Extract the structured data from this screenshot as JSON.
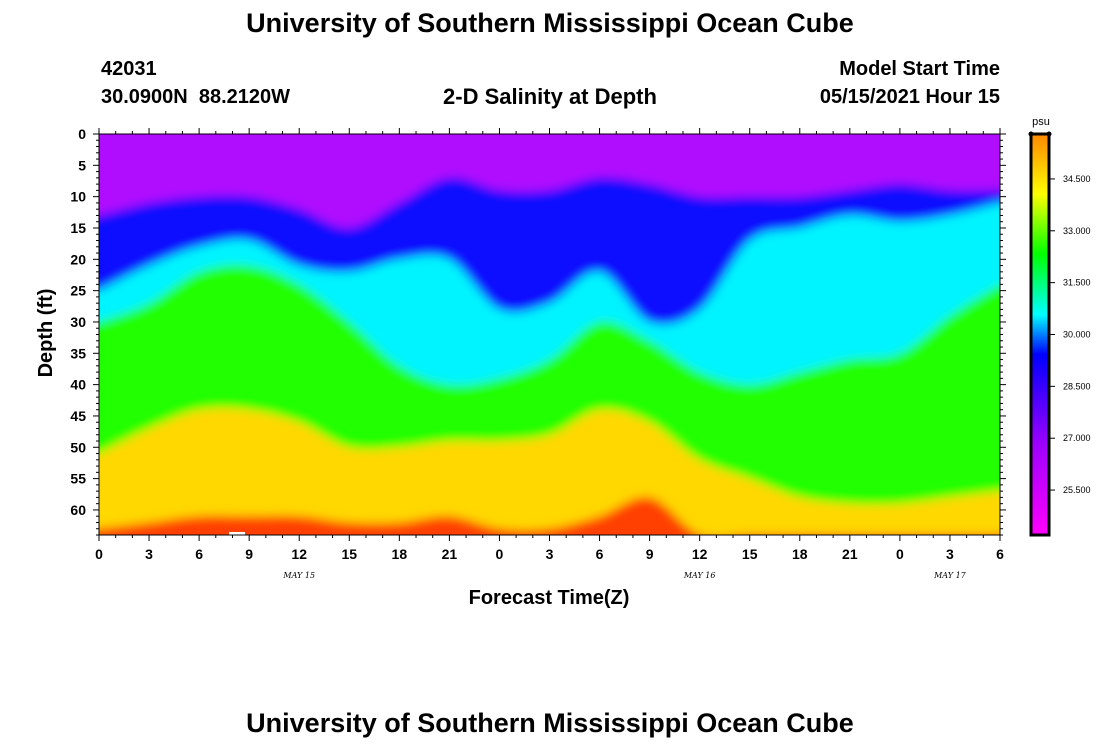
{
  "header": {
    "title": "University of Southern Mississippi Ocean Cube",
    "station_id": "42031",
    "coordinates": "30.0900N  88.2120W",
    "subtitle": "2-D Salinity at Depth",
    "model_start_label": "Model Start Time",
    "model_start_value": "05/15/2021 Hour 15"
  },
  "footer": {
    "title": "University of Southern Mississippi Ocean Cube"
  },
  "chart_data": {
    "type": "heatmap",
    "title": "2-D Salinity at Depth",
    "xlabel": "Forecast Time(Z)",
    "ylabel": "Depth (ft)",
    "x_tick_labels": [
      "0",
      "3",
      "6",
      "9",
      "12",
      "15",
      "18",
      "21",
      "0",
      "3",
      "6",
      "9",
      "12",
      "15",
      "18",
      "21",
      "0",
      "3",
      "6"
    ],
    "x_date_labels": [
      {
        "label": "MAY 15",
        "at_hours": 12
      },
      {
        "label": "MAY 16",
        "at_hours": 36
      },
      {
        "label": "MAY 17",
        "at_hours": 51
      }
    ],
    "xlim_hours": [
      0,
      54
    ],
    "y_tick_labels": [
      "0",
      "5",
      "10",
      "15",
      "20",
      "25",
      "30",
      "35",
      "40",
      "45",
      "50",
      "55",
      "60"
    ],
    "ylim_ft": [
      0,
      64
    ],
    "colorbar": {
      "unit": "psu",
      "ticks": [
        "34.500",
        "33.000",
        "31.500",
        "30.000",
        "28.500",
        "27.000",
        "25.500"
      ],
      "range": [
        24.2,
        35.8
      ]
    },
    "isolines": {
      "x_hours": [
        0,
        3,
        6,
        9,
        12,
        15,
        18,
        21,
        24,
        27,
        30,
        33,
        36,
        39,
        42,
        45,
        48,
        51,
        54
      ],
      "depth_30": [
        13,
        11,
        10,
        10,
        12,
        15,
        11,
        7,
        9,
        9,
        7,
        8,
        10,
        10,
        10,
        9,
        8,
        9,
        9
      ],
      "depth_31_5": [
        25,
        21,
        18,
        17,
        21,
        22,
        20,
        20,
        28,
        27,
        22,
        30,
        28,
        17,
        15,
        13,
        14,
        13,
        11
      ],
      "depth_33": [
        30,
        27,
        22,
        21,
        24,
        30,
        37,
        40,
        39,
        36,
        30,
        33,
        38,
        40,
        38,
        36,
        35,
        29,
        24
      ],
      "depth_34_5": [
        51,
        47,
        44,
        44,
        46,
        50,
        50,
        49,
        49,
        48,
        44,
        46,
        52,
        55,
        58,
        59,
        59,
        58,
        57
      ],
      "depth_35_5": [
        63,
        62,
        61,
        61,
        61,
        62,
        62,
        61,
        63,
        63,
        61,
        58,
        64,
        64,
        64,
        64,
        64,
        64,
        64
      ]
    }
  }
}
